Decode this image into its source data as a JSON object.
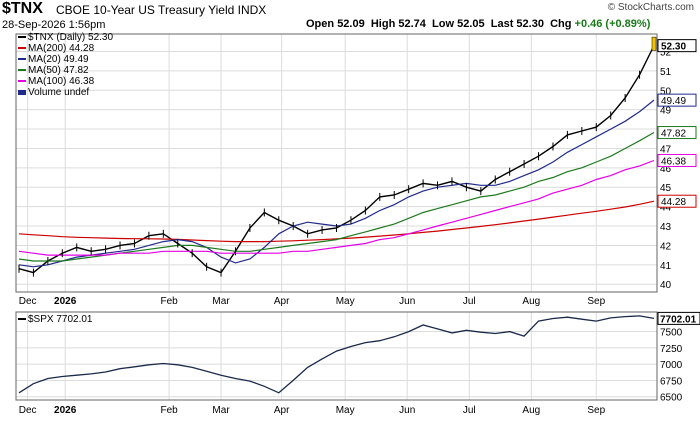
{
  "header": {
    "symbol": "$TNX",
    "name": "CBOE 10-Year US Treasury Yield INDX",
    "date": "28-Sep-2026 1:56pm",
    "open_label": "Open",
    "open": "52.09",
    "high_label": "High",
    "high": "52.74",
    "low_label": "Low",
    "low": "52.05",
    "last_label": "Last",
    "last": "52.30",
    "chg_label": "Chg",
    "chg": "+0.46 (+0.89%)",
    "watermark": "© StockCharts.com"
  },
  "colors": {
    "ma200": "#cc0000",
    "ma20": "#1f2a8a",
    "ma50": "#1e7a1e",
    "ma100": "#e600e6",
    "volume": "#1f2a8a",
    "price": "#000000",
    "grid": "#dcdcdc"
  },
  "legend": {
    "price": "$TNX (Daily) 52.30",
    "ma200": "MA(200) 44.28",
    "ma20": "MA(20) 49.49",
    "ma50": "MA(50) 47.82",
    "ma100": "MA(100) 46.38",
    "volume": "Volume undef"
  },
  "lower_legend": "$SPX 7702.01",
  "chart_data": [
    {
      "type": "line",
      "title": "$TNX (Daily)",
      "x_tick_labels": [
        "Dec",
        "2026",
        "Feb",
        "Mar",
        "Apr",
        "May",
        "Jun",
        "Jul",
        "Aug",
        "Sep"
      ],
      "y_tick_labels": [
        "40",
        "41",
        "42",
        "43",
        "44",
        "45",
        "46",
        "47",
        "48",
        "49",
        "50",
        "51",
        "52"
      ],
      "ylim": [
        39.6,
        52.9
      ],
      "grid": true,
      "legend_placement": "top-left",
      "x": [
        "Nov 26",
        "Dec 3",
        "Dec 10",
        "Dec 17",
        "Dec 24",
        "Dec 31",
        "Jan 7",
        "Jan 14",
        "Jan 21",
        "Jan 28",
        "Feb 4",
        "Feb 11",
        "Feb 18",
        "Feb 25",
        "Mar 4",
        "Mar 11",
        "Mar 18",
        "Mar 25",
        "Apr 1",
        "Apr 8",
        "Apr 15",
        "Apr 22",
        "Apr 29",
        "May 6",
        "May 13",
        "May 20",
        "May 27",
        "Jun 3",
        "Jun 10",
        "Jun 17",
        "Jun 24",
        "Jul 1",
        "Jul 8",
        "Jul 15",
        "Jul 22",
        "Jul 29",
        "Aug 5",
        "Aug 12",
        "Aug 19",
        "Aug 26",
        "Sep 2",
        "Sep 9",
        "Sep 16",
        "Sep 23",
        "Sep 28"
      ],
      "series": [
        {
          "name": "$TNX",
          "values": [
            40.8,
            40.6,
            41.2,
            41.6,
            41.9,
            41.7,
            41.8,
            42.0,
            42.1,
            42.5,
            42.6,
            42.1,
            41.6,
            40.9,
            40.6,
            41.7,
            42.9,
            43.7,
            43.3,
            43.0,
            42.6,
            42.8,
            42.9,
            43.3,
            43.8,
            44.5,
            44.6,
            44.9,
            45.2,
            45.1,
            45.3,
            45.0,
            44.8,
            45.4,
            45.8,
            46.2,
            46.6,
            47.1,
            47.7,
            47.9,
            48.1,
            48.7,
            49.6,
            50.8,
            52.3
          ]
        },
        {
          "name": "MA(200)",
          "values": [
            42.6,
            42.55,
            42.5,
            42.45,
            42.42,
            42.4,
            42.38,
            42.36,
            42.35,
            42.34,
            42.33,
            42.31,
            42.28,
            42.25,
            42.22,
            42.2,
            42.2,
            42.2,
            42.22,
            42.24,
            42.27,
            42.3,
            42.34,
            42.38,
            42.43,
            42.48,
            42.54,
            42.6,
            42.67,
            42.74,
            42.82,
            42.9,
            42.98,
            43.07,
            43.16,
            43.26,
            43.36,
            43.46,
            43.56,
            43.66,
            43.76,
            43.87,
            43.98,
            44.12,
            44.28
          ]
        },
        {
          "name": "MA(20)",
          "values": [
            41.0,
            40.9,
            41.0,
            41.2,
            41.4,
            41.5,
            41.6,
            41.7,
            41.8,
            42.0,
            42.2,
            42.3,
            42.2,
            41.9,
            41.4,
            41.1,
            41.3,
            41.9,
            42.6,
            43.0,
            43.2,
            43.1,
            43.0,
            43.1,
            43.4,
            43.8,
            44.1,
            44.5,
            44.8,
            45.0,
            45.1,
            45.2,
            45.1,
            45.1,
            45.3,
            45.6,
            45.9,
            46.3,
            46.8,
            47.2,
            47.6,
            48.0,
            48.4,
            48.9,
            49.49
          ]
        },
        {
          "name": "MA(50)",
          "values": [
            41.3,
            41.2,
            41.2,
            41.2,
            41.3,
            41.4,
            41.5,
            41.6,
            41.7,
            41.8,
            41.9,
            42.0,
            42.0,
            41.9,
            41.8,
            41.7,
            41.7,
            41.8,
            41.9,
            42.0,
            42.1,
            42.2,
            42.3,
            42.5,
            42.7,
            42.9,
            43.1,
            43.4,
            43.7,
            43.9,
            44.1,
            44.3,
            44.5,
            44.6,
            44.8,
            45.0,
            45.3,
            45.5,
            45.8,
            46.0,
            46.3,
            46.6,
            47.0,
            47.4,
            47.82
          ]
        },
        {
          "name": "MA(100)",
          "values": [
            41.7,
            41.6,
            41.5,
            41.5,
            41.5,
            41.5,
            41.5,
            41.6,
            41.6,
            41.6,
            41.7,
            41.7,
            41.7,
            41.7,
            41.6,
            41.6,
            41.6,
            41.6,
            41.6,
            41.7,
            41.7,
            41.8,
            41.9,
            42.0,
            42.1,
            42.3,
            42.4,
            42.6,
            42.8,
            43.0,
            43.2,
            43.4,
            43.6,
            43.8,
            44.0,
            44.2,
            44.4,
            44.7,
            44.9,
            45.1,
            45.4,
            45.6,
            45.9,
            46.1,
            46.38
          ]
        }
      ]
    },
    {
      "type": "line",
      "title": "$SPX",
      "y_tick_labels": [
        "6500",
        "6750",
        "7000",
        "7250",
        "7500",
        "7702.01"
      ],
      "ylim": [
        6450,
        7800
      ],
      "grid": true,
      "x": [
        "Nov 26",
        "Dec 3",
        "Dec 10",
        "Dec 17",
        "Dec 24",
        "Dec 31",
        "Jan 7",
        "Jan 14",
        "Jan 21",
        "Jan 28",
        "Feb 4",
        "Feb 11",
        "Feb 18",
        "Feb 25",
        "Mar 4",
        "Mar 11",
        "Mar 18",
        "Mar 25",
        "Apr 1",
        "Apr 8",
        "Apr 15",
        "Apr 22",
        "Apr 29",
        "May 6",
        "May 13",
        "May 20",
        "May 27",
        "Jun 3",
        "Jun 10",
        "Jun 17",
        "Jun 24",
        "Jul 1",
        "Jul 8",
        "Jul 15",
        "Jul 22",
        "Jul 29",
        "Aug 5",
        "Aug 12",
        "Aug 19",
        "Aug 26",
        "Sep 2",
        "Sep 9",
        "Sep 16",
        "Sep 23",
        "Sep 28"
      ],
      "series": [
        {
          "name": "$SPX",
          "values": [
            6560,
            6700,
            6780,
            6810,
            6830,
            6850,
            6880,
            6930,
            6960,
            6990,
            7010,
            6990,
            6950,
            6890,
            6830,
            6780,
            6740,
            6660,
            6560,
            6750,
            6950,
            7080,
            7200,
            7270,
            7330,
            7360,
            7420,
            7500,
            7600,
            7540,
            7480,
            7520,
            7490,
            7470,
            7500,
            7430,
            7660,
            7700,
            7720,
            7690,
            7660,
            7710,
            7730,
            7740,
            7702
          ]
        }
      ]
    }
  ]
}
